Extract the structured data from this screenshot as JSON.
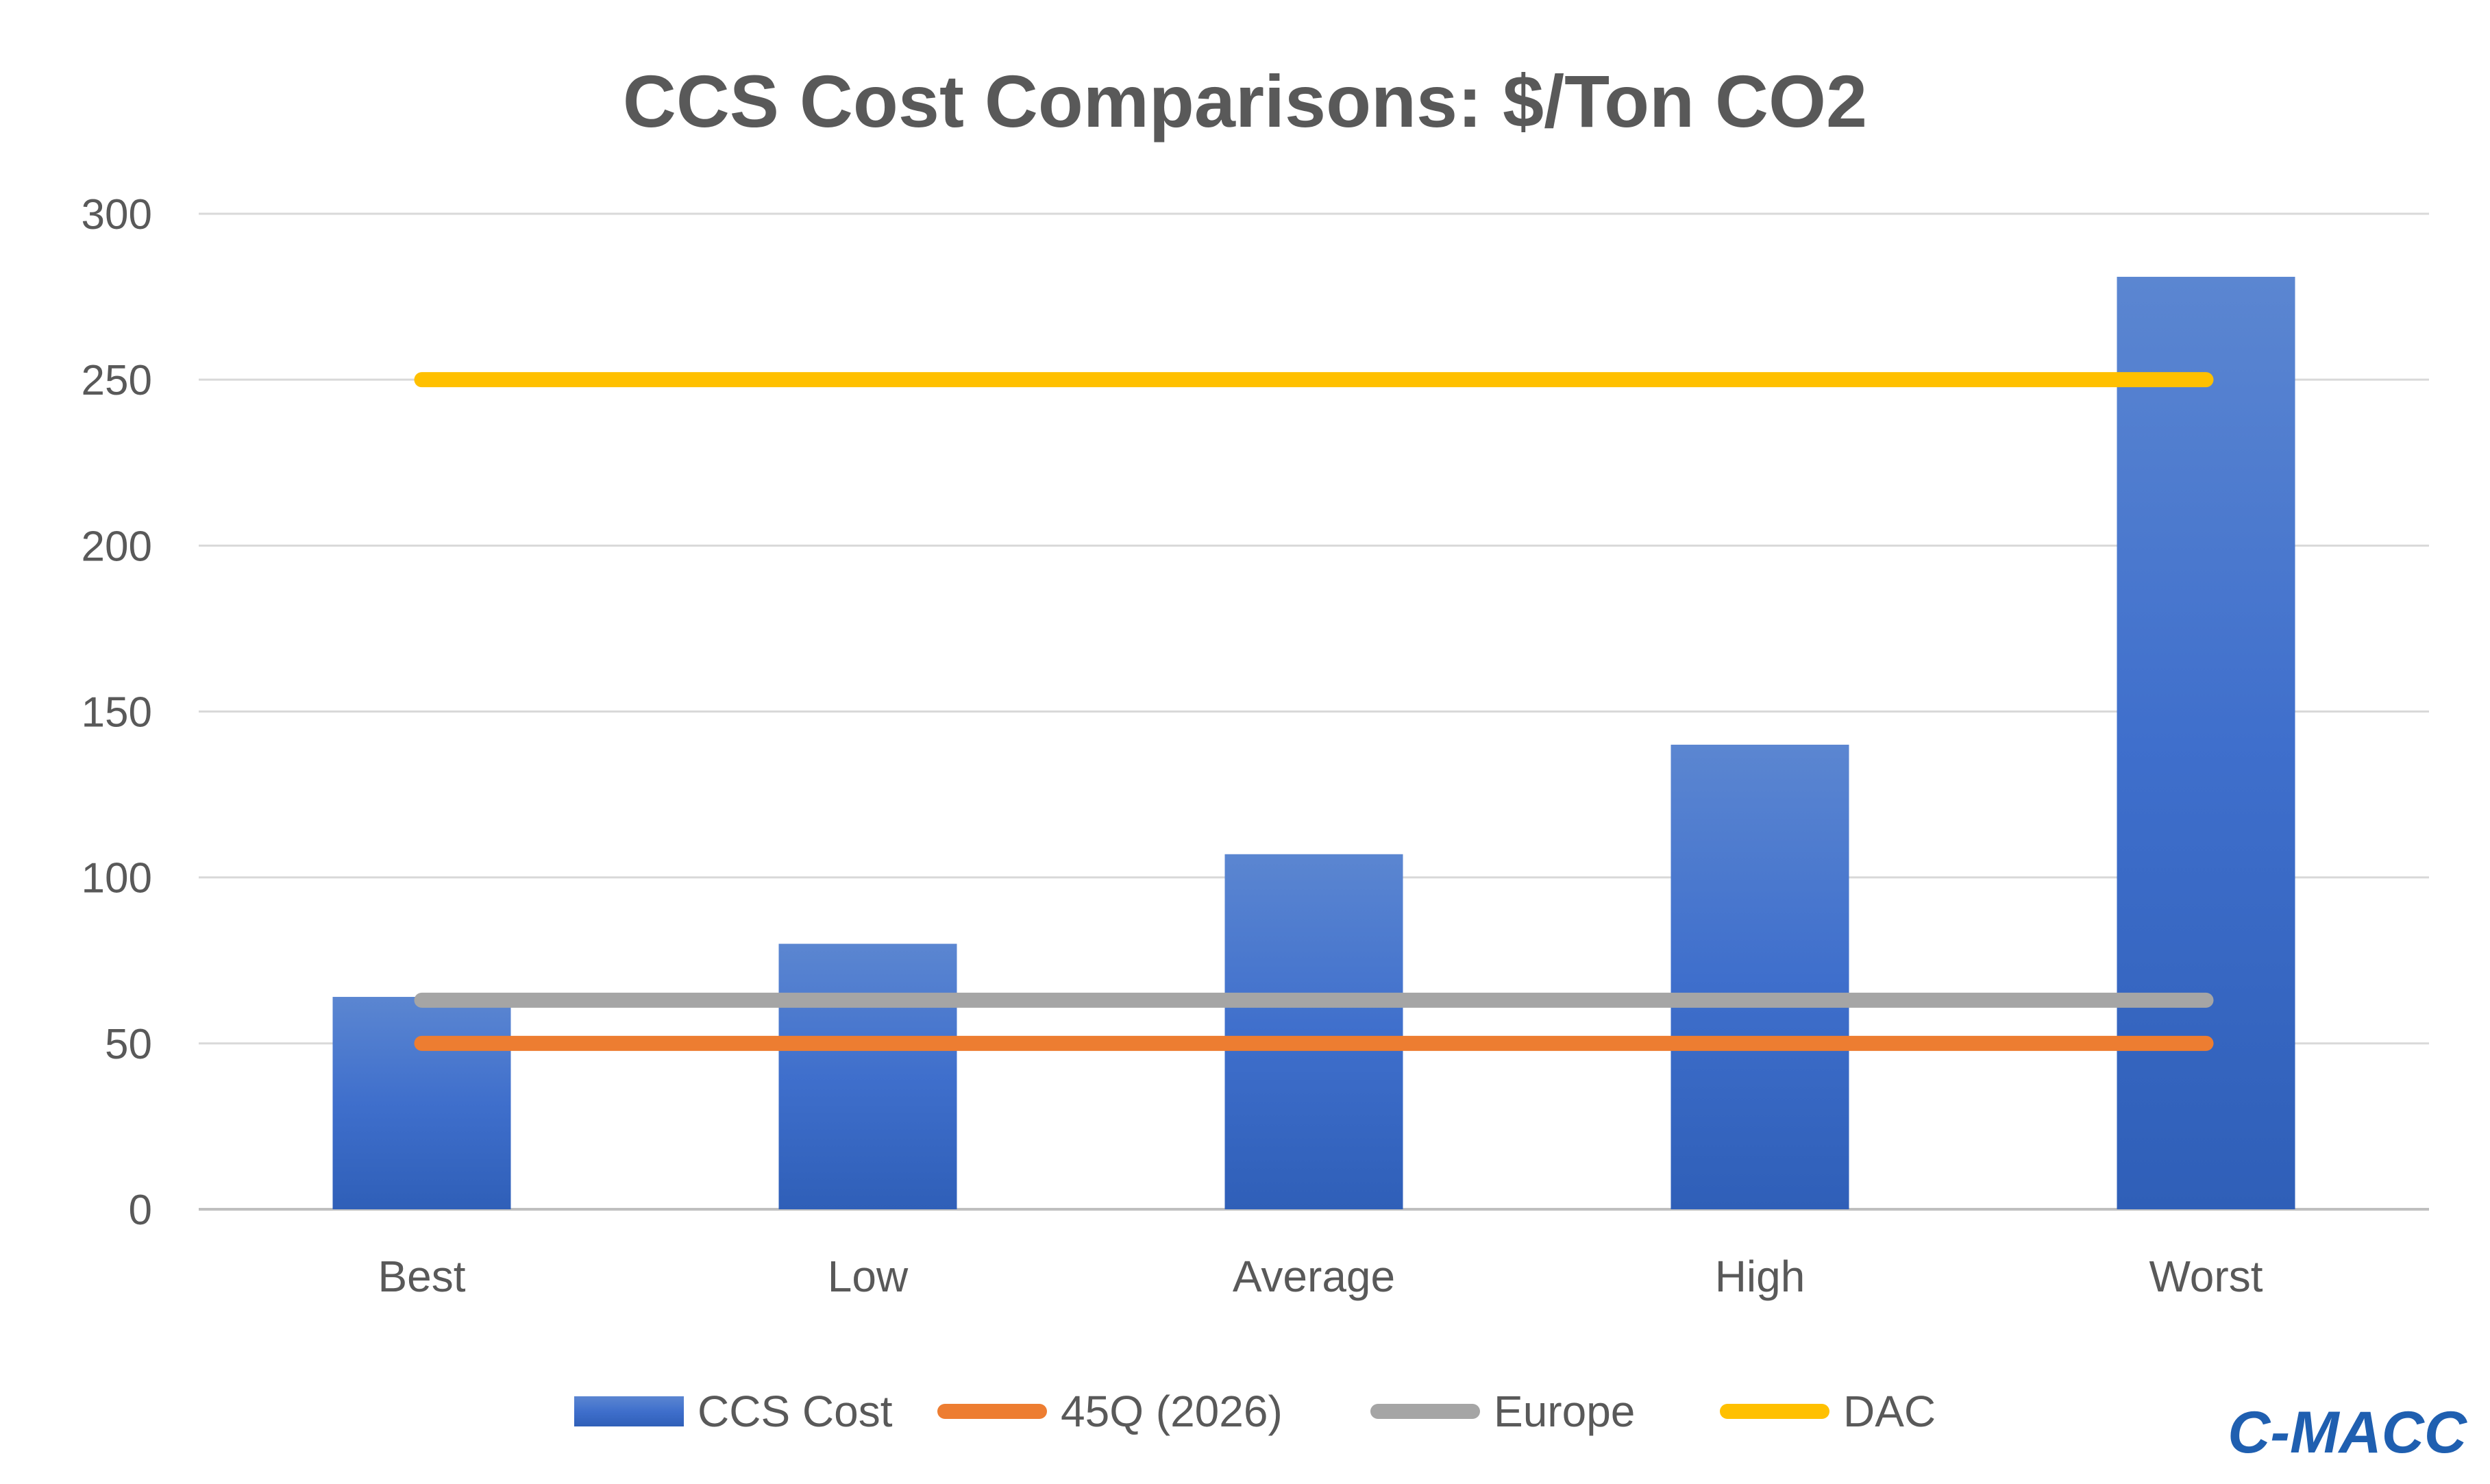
{
  "chart_data": {
    "type": "bar",
    "title": "CCS Cost Comparisons: $/Ton CO2",
    "categories": [
      "Best",
      "Low",
      "Average",
      "High",
      "Worst"
    ],
    "ylim": [
      0,
      300
    ],
    "yticks": [
      0,
      50,
      100,
      150,
      200,
      250,
      300
    ],
    "grid": true,
    "legend_position": "bottom",
    "bar_series": {
      "name": "CCS Cost",
      "values": [
        64,
        80,
        107,
        140,
        281
      ],
      "color": "#3f6fcc"
    },
    "line_series": [
      {
        "name": "45Q (2026)",
        "values": [
          50,
          50,
          50,
          50,
          50
        ],
        "color": "#ed7d31"
      },
      {
        "name": "Europe",
        "values": [
          63,
          63,
          63,
          63,
          63
        ],
        "color": "#a5a5a5"
      },
      {
        "name": "DAC",
        "values": [
          250,
          250,
          250,
          250,
          250
        ],
        "color": "#ffc000"
      }
    ]
  },
  "brand": {
    "text": "C-MACC",
    "color": "#1f5fb0"
  }
}
